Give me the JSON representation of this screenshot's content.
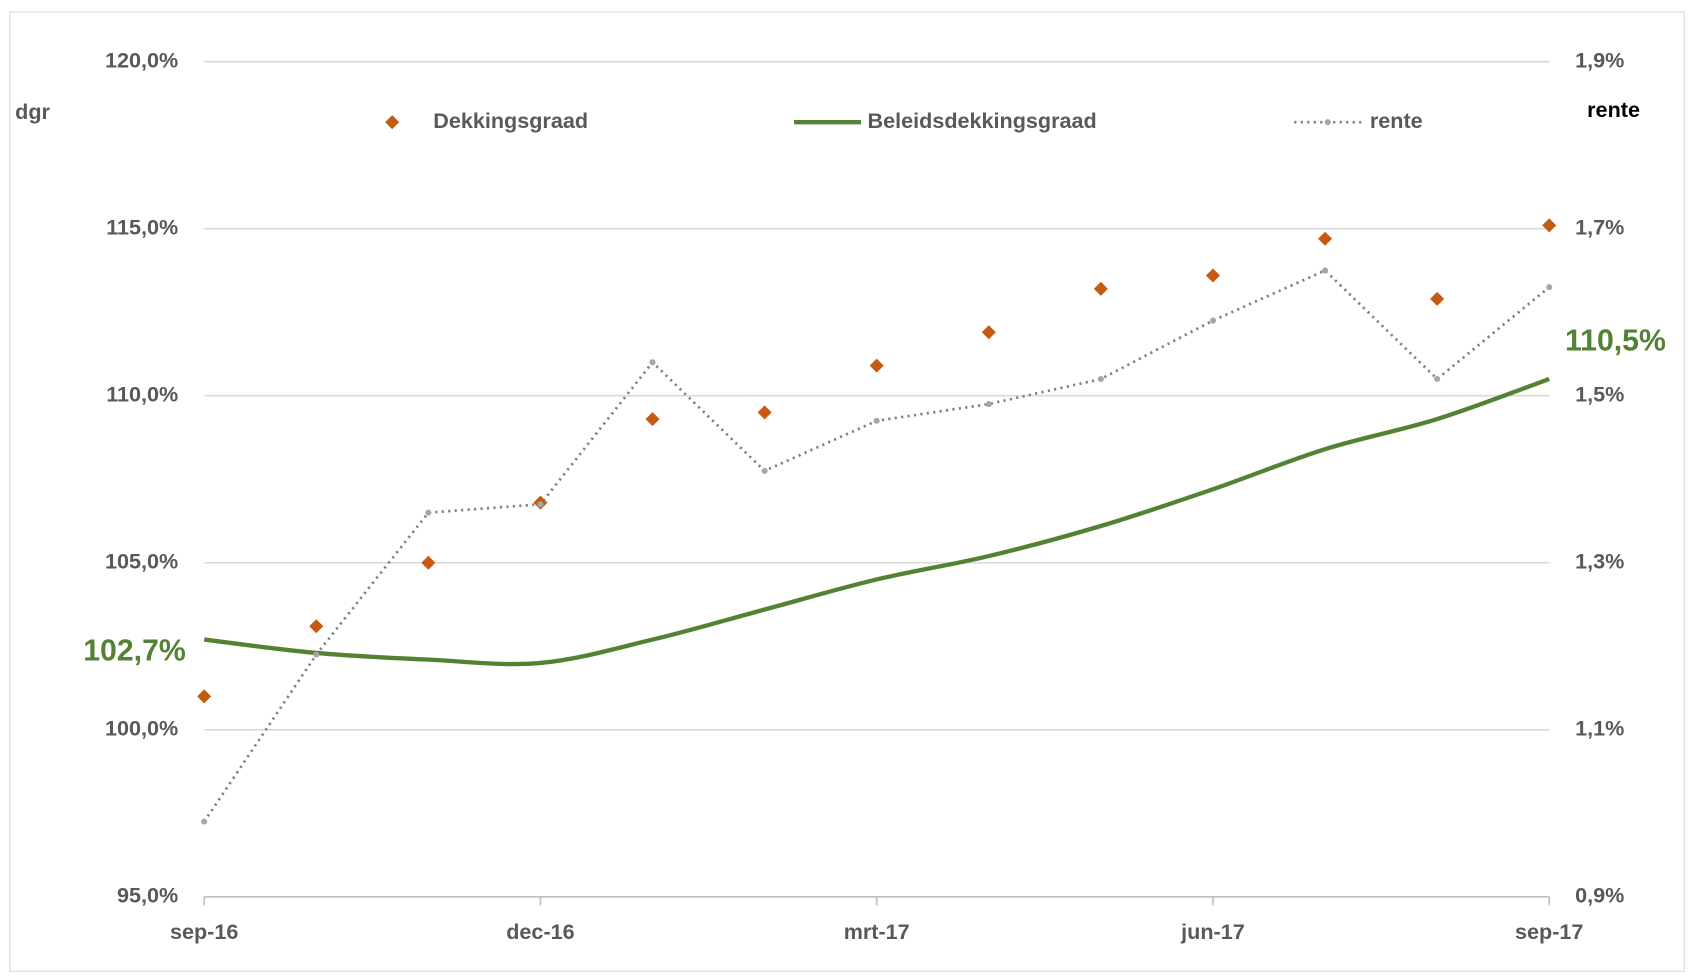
{
  "chart_data": {
    "type": "line",
    "y_label": "dgr",
    "y2_label": "rente",
    "categories": [
      "sep-16",
      null,
      null,
      "dec-16",
      null,
      null,
      "mrt-17",
      null,
      null,
      "jun-17",
      null,
      null,
      "sep-17"
    ],
    "ylim": [
      95,
      120
    ],
    "yticks": [
      {
        "value": 95,
        "label": "95,0%"
      },
      {
        "value": 100,
        "label": "100,0%"
      },
      {
        "value": 105,
        "label": "105,0%"
      },
      {
        "value": 110,
        "label": "110,0%"
      },
      {
        "value": 115,
        "label": "115,0%"
      },
      {
        "value": 120,
        "label": "120,0%"
      }
    ],
    "y2lim": [
      0.9,
      1.9
    ],
    "y2ticks": [
      {
        "value": 0.9,
        "label": "0,9%"
      },
      {
        "value": 1.1,
        "label": "1,1%"
      },
      {
        "value": 1.3,
        "label": "1,3%"
      },
      {
        "value": 1.5,
        "label": "1,5%"
      },
      {
        "value": 1.7,
        "label": "1,7%"
      },
      {
        "value": 1.9,
        "label": "1,9%"
      }
    ],
    "grid": true,
    "legend": "top",
    "series": [
      {
        "name": "Dekkingsgraad",
        "style": "markers",
        "color": "#c55a11",
        "values": [
          101.0,
          103.1,
          105.0,
          106.8,
          109.3,
          109.5,
          110.9,
          111.9,
          113.2,
          113.6,
          114.7,
          112.9,
          115.1
        ]
      },
      {
        "name": "Beleidsdekkingsgraad",
        "style": "line",
        "color": "#548235",
        "values": [
          102.7,
          102.3,
          102.1,
          102.0,
          102.7,
          103.6,
          104.5,
          105.2,
          106.1,
          107.2,
          108.4,
          109.3,
          110.5
        ],
        "value_labels": [
          "102,7%",
          null,
          null,
          null,
          null,
          null,
          null,
          null,
          null,
          null,
          null,
          null,
          "110,5%"
        ]
      },
      {
        "name": "rente",
        "style": "dotted",
        "color": "#a6a6a6",
        "axis": "y2",
        "values": [
          0.99,
          1.19,
          1.36,
          1.37,
          1.54,
          1.41,
          1.47,
          1.49,
          1.52,
          1.59,
          1.65,
          1.52,
          1.63
        ]
      }
    ]
  }
}
